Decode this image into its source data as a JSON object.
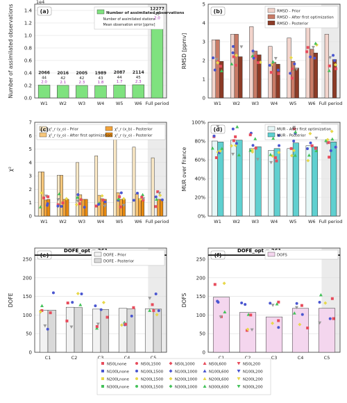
{
  "chart_data": [
    {
      "panel": "(a)",
      "type": "bar",
      "ylabel": "Number of assimilated observations",
      "exponent": "1e4",
      "categories": [
        "W1",
        "W2",
        "W3",
        "W4",
        "W5",
        "W6",
        "Full period"
      ],
      "ylim": [
        0,
        1.5
      ],
      "yticks": [
        "0.0",
        "0.2",
        "0.4",
        "0.6",
        "0.8",
        "1.0",
        "1.2",
        "1.4"
      ],
      "series": [
        {
          "name": "Number of assimilated observations",
          "values": [
            0.2066,
            0.2016,
            0.2005,
            0.1989,
            0.2087,
            0.2114,
            1.2277
          ]
        }
      ],
      "annotations": [
        {
          "count": "2066",
          "stations": "44",
          "error": "2.0"
        },
        {
          "count": "2016",
          "stations": "42",
          "error": "2.1"
        },
        {
          "count": "2005",
          "stations": "42",
          "error": "2.3"
        },
        {
          "count": "1989",
          "stations": "43",
          "error": "1.8"
        },
        {
          "count": "2087",
          "stations": "44",
          "error": "1.7"
        },
        {
          "count": "2114",
          "stations": "45",
          "error": "2.3"
        },
        {
          "count": "12277",
          "stations": "45",
          "error": "2.0"
        }
      ],
      "legend_notes": [
        "Number of assimilated stations",
        "Mean observation error [ppmv]"
      ]
    },
    {
      "panel": "(b)",
      "type": "bar",
      "ylabel": "RMSD [ppmv]",
      "categories": [
        "W1",
        "W2",
        "W3",
        "W4",
        "W5",
        "W6",
        "Full period"
      ],
      "ylim": [
        0,
        5
      ],
      "yticks": [
        "0",
        "1",
        "2",
        "3",
        "4",
        "5"
      ],
      "series": [
        {
          "name": "RMSD - Prior",
          "color": "#f2d4cc",
          "values": [
            3.1,
            3.4,
            3.8,
            2.75,
            3.2,
            3.95,
            3.4
          ]
        },
        {
          "name": "RMSD - After first optimization",
          "color": "#c97b66",
          "values": [
            3.1,
            3.4,
            2.5,
            1.9,
            1.95,
            2.6,
            null
          ]
        },
        {
          "name": "RMSD - Posterior",
          "color": "#8c3b26",
          "values": [
            1.95,
            2.2,
            2.3,
            1.8,
            1.6,
            2.4,
            2.05
          ]
        }
      ]
    },
    {
      "panel": "(c)",
      "type": "bar",
      "ylabel": "χ²",
      "categories": [
        "W1",
        "W2",
        "W3",
        "W4",
        "W5",
        "W6",
        "Full period"
      ],
      "ylim": [
        0,
        7
      ],
      "yticks": [
        "0",
        "1",
        "2",
        "3",
        "4",
        "5",
        "6",
        "7"
      ],
      "series": [
        {
          "name": "χ²_r (y_o) - Prior",
          "color": "#fbe9c6",
          "values": [
            3.3,
            3.05,
            4.0,
            4.5,
            5.95,
            5.15,
            4.35
          ]
        },
        {
          "name": "χ²_r (y_o) - After first optimization",
          "color": "#f7c77b",
          "values": [
            3.3,
            3.05,
            1.6,
            1.55,
            1.75,
            1.65,
            null
          ]
        },
        {
          "name": "χ²_r (x_b) - Posterior",
          "color": "#f3a33a",
          "values": [
            1.2,
            1.25,
            1.25,
            1.3,
            1.25,
            1.3,
            1.25
          ]
        },
        {
          "name": "χ²_r (y_o) - Posterior",
          "color": "#e88a10",
          "values": [
            1.25,
            1.25,
            1.25,
            1.25,
            1.25,
            1.25,
            1.25
          ]
        }
      ]
    },
    {
      "panel": "(d)",
      "type": "bar",
      "ylabel": "MUR over France",
      "categories": [
        "W1",
        "W2",
        "W3",
        "W4",
        "W5",
        "W6",
        "Full period"
      ],
      "ylim": [
        0,
        100
      ],
      "yticks": [
        "0%",
        "20%",
        "40%",
        "60%",
        "80%",
        "100%"
      ],
      "series": [
        {
          "name": "MUR - After first optimization",
          "color": "#e6f7f7",
          "values": [
            80,
            81,
            72,
            70,
            72,
            75,
            null
          ]
        },
        {
          "name": "MUR - Posterior",
          "color": "#5fd0d0",
          "values": [
            79,
            81,
            74,
            72,
            78,
            74,
            79
          ]
        }
      ]
    },
    {
      "panel": "(e)",
      "type": "bar",
      "ylabel": "DOFE",
      "categories": [
        "C1",
        "C2",
        "C3",
        "C4",
        "C5"
      ],
      "ylim": [
        0,
        280
      ],
      "yticks": [
        "0",
        "50",
        "100",
        "150",
        "200",
        "250"
      ],
      "reference": {
        "label": "DOFE_opt = 261",
        "value": 261
      },
      "series": [
        {
          "name": "DOFE - Prior",
          "color": "#f2f2f2",
          "values": [
            113,
            121,
            116,
            118,
            117
          ]
        },
        {
          "name": "DOFE - Posterior",
          "color": "#d9d9d9",
          "values": [
            113,
            120,
            115,
            117,
            116
          ]
        }
      ]
    },
    {
      "panel": "(f)",
      "type": "bar",
      "ylabel": "DOFS",
      "categories": [
        "C1",
        "C2",
        "C3",
        "C4",
        "C5"
      ],
      "ylim": [
        0,
        280
      ],
      "yticks": [
        "0",
        "50",
        "100",
        "150",
        "200",
        "250"
      ],
      "reference": {
        "label": "DOFE_opt = 261",
        "value": 261
      },
      "series": [
        {
          "name": "DOFS",
          "color": "#f4d6ee",
          "values": [
            148,
            107,
            95,
            118,
            118
          ]
        }
      ]
    }
  ],
  "legend_bottom": [
    {
      "label": "N50Lnone",
      "marker": "square",
      "color": "#e74c5c"
    },
    {
      "label": "N100Lnone",
      "marker": "square",
      "color": "#4a56d0"
    },
    {
      "label": "N200Lnone",
      "marker": "square",
      "color": "#e8d84a"
    },
    {
      "label": "N300Lnone",
      "marker": "square",
      "color": "#44c25a"
    },
    {
      "label": "N50L1500",
      "marker": "circle",
      "color": "#e74c5c"
    },
    {
      "label": "N100L1500",
      "marker": "circle",
      "color": "#4a56d0"
    },
    {
      "label": "N200L1500",
      "marker": "circle",
      "color": "#e8d84a"
    },
    {
      "label": "N300L1500",
      "marker": "circle",
      "color": "#44c25a"
    },
    {
      "label": "N50L1000",
      "marker": "diamond",
      "color": "#e74c5c"
    },
    {
      "label": "N100L1000",
      "marker": "diamond",
      "color": "#4a56d0"
    },
    {
      "label": "N200L1000",
      "marker": "diamond",
      "color": "#e8d84a"
    },
    {
      "label": "N300L1000",
      "marker": "diamond",
      "color": "#44c25a"
    },
    {
      "label": "N50L600",
      "marker": "triangle-up",
      "color": "#e74c5c"
    },
    {
      "label": "N100L600",
      "marker": "triangle-up",
      "color": "#4a56d0"
    },
    {
      "label": "N200L600",
      "marker": "triangle-up",
      "color": "#e8d84a"
    },
    {
      "label": "N300L600",
      "marker": "triangle-up",
      "color": "#44c25a"
    },
    {
      "label": "N50L200",
      "marker": "triangle-down",
      "color": "#e74c5c"
    },
    {
      "label": "N100L200",
      "marker": "triangle-down",
      "color": "#4a56d0"
    },
    {
      "label": "N200L200",
      "marker": "triangle-down",
      "color": "#e8d84a"
    },
    {
      "label": "N300L200",
      "marker": "triangle-down",
      "color": "#44c25a"
    }
  ]
}
